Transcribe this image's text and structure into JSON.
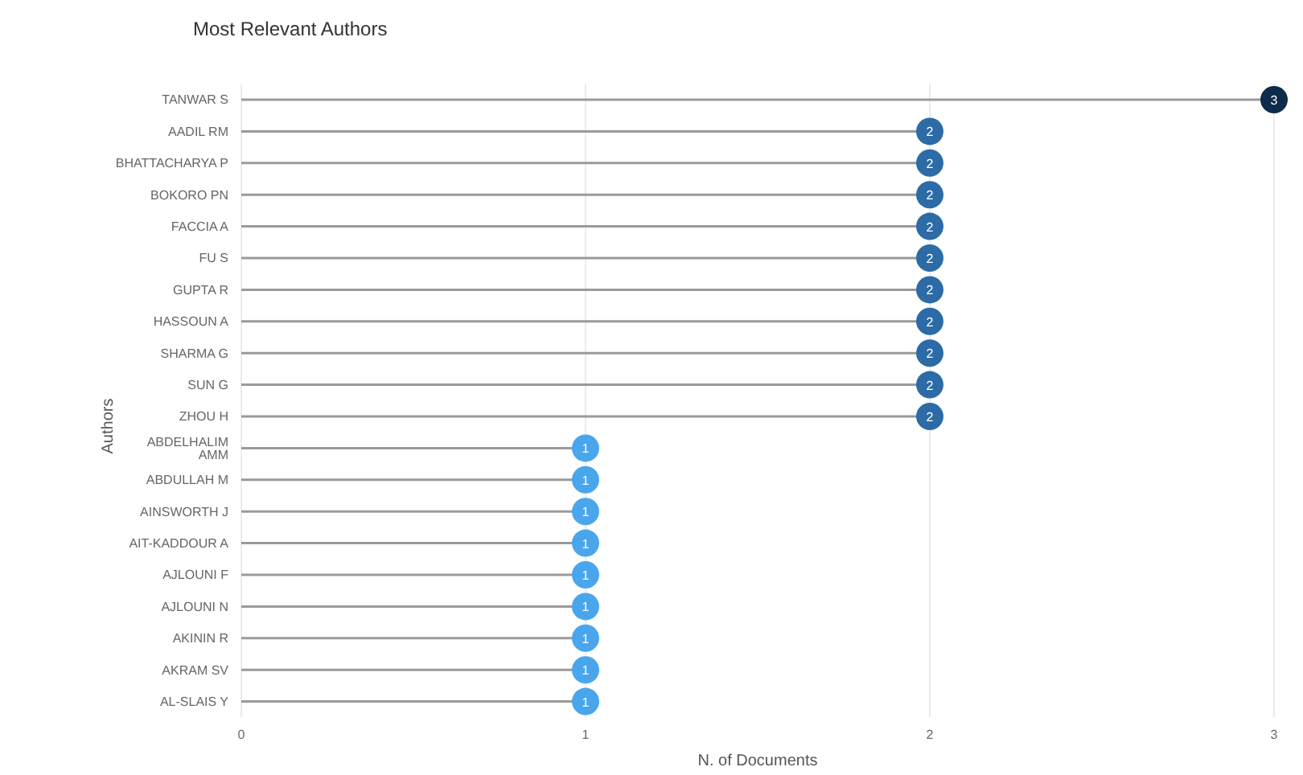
{
  "chart_data": {
    "type": "lollipop",
    "orientation": "horizontal",
    "title": "Most Relevant Authors",
    "xlabel": "N. of Documents",
    "ylabel": "Authors",
    "categories": [
      "TANWAR S",
      "AADIL RM",
      "BHATTACHARYA P",
      "BOKORO PN",
      "FACCIA A",
      "FU S",
      "GUPTA R",
      "HASSOUN A",
      "SHARMA G",
      "SUN G",
      "ZHOU H",
      "ABDELHALIM AMM",
      "ABDULLAH M",
      "AINSWORTH J",
      "AIT-KADDOUR A",
      "AJLOUNI F",
      "AJLOUNI N",
      "AKININ R",
      "AKRAM SV",
      "AL-SLAIS Y"
    ],
    "values": [
      3,
      2,
      2,
      2,
      2,
      2,
      2,
      2,
      2,
      2,
      2,
      1,
      1,
      1,
      1,
      1,
      1,
      1,
      1,
      1
    ],
    "colors": [
      "#0e2b4c",
      "#2c6ba6",
      "#2c6ba6",
      "#2c6ba6",
      "#2c6ba6",
      "#2c6ba6",
      "#2c6ba6",
      "#2c6ba6",
      "#2c6ba6",
      "#2c6ba6",
      "#2c6ba6",
      "#4aa6ec",
      "#4aa6ec",
      "#4aa6ec",
      "#4aa6ec",
      "#4aa6ec",
      "#4aa6ec",
      "#4aa6ec",
      "#4aa6ec",
      "#4aa6ec"
    ],
    "xlim": [
      0,
      3
    ],
    "xticks": [
      0,
      1,
      2,
      3
    ],
    "grid": "x",
    "data_labels": true
  }
}
